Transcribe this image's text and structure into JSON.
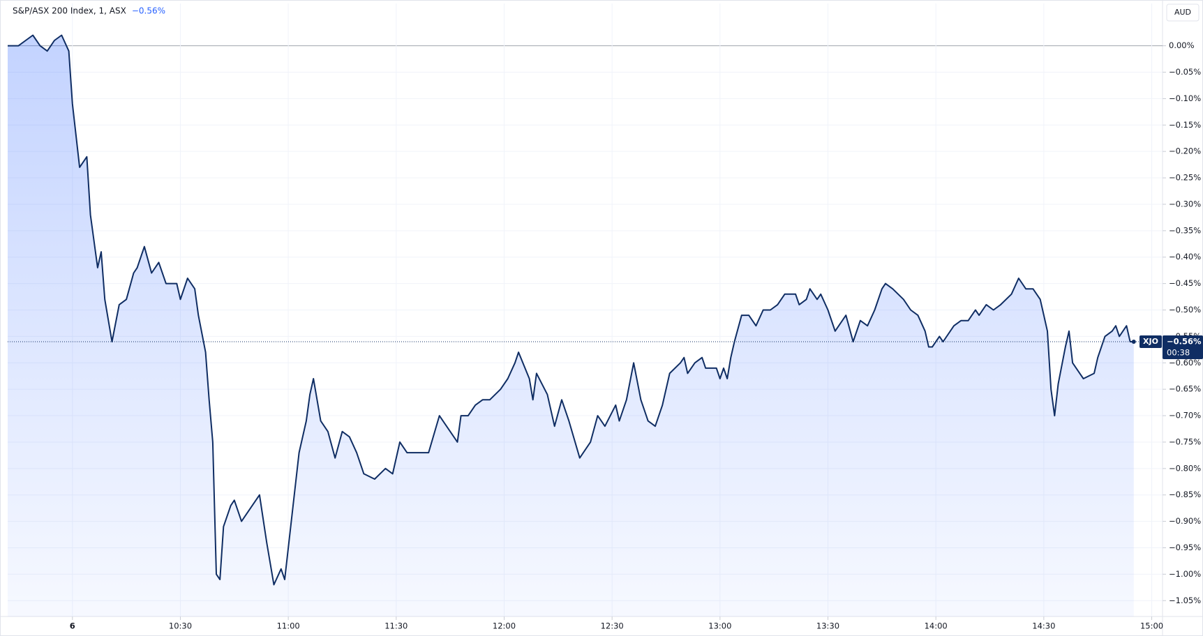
{
  "chart_data": {
    "type": "line",
    "title": "S&P/ASX 200 Index, 1, ASX",
    "change_label": "−0.56%",
    "symbol": "XJO",
    "countdown": "00:38",
    "currency": "AUD",
    "series": [
      {
        "name": "XJO",
        "color": "#0f2d63",
        "area_color": "#2962ff",
        "x": [
          582,
          585,
          587,
          589,
          591,
          593,
          595,
          597,
          599,
          600,
          602,
          604,
          605,
          607,
          608,
          609,
          611,
          613,
          615,
          617,
          618,
          620,
          622,
          624,
          626,
          629,
          630,
          632,
          634,
          635,
          637,
          638,
          639,
          640,
          641,
          642,
          644,
          645,
          647,
          649,
          652,
          654,
          656,
          658,
          659,
          661,
          663,
          665,
          666,
          667,
          669,
          671,
          673,
          675,
          677,
          679,
          681,
          684,
          687,
          689,
          691,
          693,
          695,
          697,
          699,
          702,
          704,
          707,
          708,
          710,
          712,
          714,
          716,
          719,
          721,
          723,
          724,
          727,
          728,
          729,
          732,
          734,
          736,
          738,
          741,
          744,
          746,
          747,
          748,
          751,
          752,
          754,
          756,
          758,
          760,
          762,
          764,
          766,
          769,
          770,
          771,
          773,
          775,
          776,
          779,
          780,
          781,
          782,
          783,
          784,
          786,
          788,
          790,
          792,
          794,
          796,
          798,
          801,
          802,
          804,
          805,
          807,
          808,
          810,
          812,
          815,
          817,
          819,
          821,
          823,
          825,
          826,
          828,
          831,
          833,
          835,
          837,
          838,
          839,
          841,
          842,
          845,
          847,
          849,
          851,
          852,
          854,
          856,
          858,
          861,
          863,
          865,
          867,
          869,
          870,
          871,
          872,
          873,
          874,
          876,
          877,
          878,
          880,
          881,
          884,
          885,
          887,
          889,
          890,
          891,
          893,
          894,
          895
        ],
        "values": [
          0.0,
          0.0,
          0.01,
          0.02,
          0.0,
          -0.01,
          0.01,
          0.02,
          -0.01,
          -0.11,
          -0.23,
          -0.21,
          -0.32,
          -0.42,
          -0.39,
          -0.48,
          -0.56,
          -0.49,
          -0.48,
          -0.43,
          -0.42,
          -0.38,
          -0.43,
          -0.41,
          -0.45,
          -0.45,
          -0.48,
          -0.44,
          -0.46,
          -0.51,
          -0.58,
          -0.67,
          -0.75,
          -1.0,
          -1.01,
          -0.91,
          -0.87,
          -0.86,
          -0.9,
          -0.88,
          -0.85,
          -0.94,
          -1.02,
          -0.99,
          -1.01,
          -0.89,
          -0.77,
          -0.71,
          -0.66,
          -0.63,
          -0.71,
          -0.73,
          -0.78,
          -0.73,
          -0.74,
          -0.77,
          -0.81,
          -0.82,
          -0.8,
          -0.81,
          -0.75,
          -0.77,
          -0.77,
          -0.77,
          -0.77,
          -0.7,
          -0.72,
          -0.75,
          -0.7,
          -0.7,
          -0.68,
          -0.67,
          -0.67,
          -0.65,
          -0.63,
          -0.6,
          -0.58,
          -0.63,
          -0.67,
          -0.62,
          -0.66,
          -0.72,
          -0.67,
          -0.71,
          -0.78,
          -0.75,
          -0.7,
          -0.71,
          -0.72,
          -0.68,
          -0.71,
          -0.67,
          -0.6,
          -0.67,
          -0.71,
          -0.72,
          -0.68,
          -0.62,
          -0.6,
          -0.59,
          -0.62,
          -0.6,
          -0.59,
          -0.61,
          -0.61,
          -0.63,
          -0.61,
          -0.63,
          -0.59,
          -0.56,
          -0.51,
          -0.51,
          -0.53,
          -0.5,
          -0.5,
          -0.49,
          -0.47,
          -0.47,
          -0.49,
          -0.48,
          -0.46,
          -0.48,
          -0.47,
          -0.5,
          -0.54,
          -0.51,
          -0.56,
          -0.52,
          -0.53,
          -0.5,
          -0.46,
          -0.45,
          -0.46,
          -0.48,
          -0.5,
          -0.51,
          -0.54,
          -0.57,
          -0.57,
          -0.55,
          -0.56,
          -0.53,
          -0.52,
          -0.52,
          -0.5,
          -0.51,
          -0.49,
          -0.5,
          -0.49,
          -0.47,
          -0.44,
          -0.46,
          -0.46,
          -0.48,
          -0.51,
          -0.54,
          -0.65,
          -0.7,
          -0.64,
          -0.57,
          -0.54,
          -0.6,
          -0.62,
          -0.63,
          -0.62,
          -0.59,
          -0.55,
          -0.54,
          -0.53,
          -0.55,
          -0.53,
          -0.56,
          -0.56
        ]
      }
    ],
    "xlim": [
      582,
      903
    ],
    "ylim": [
      -1.08,
      0.08
    ],
    "xticks": [
      {
        "value": 600,
        "label": "6"
      },
      {
        "value": 630,
        "label": "10:30"
      },
      {
        "value": 660,
        "label": "11:00"
      },
      {
        "value": 690,
        "label": "11:30"
      },
      {
        "value": 720,
        "label": "12:00"
      },
      {
        "value": 750,
        "label": "12:30"
      },
      {
        "value": 780,
        "label": "13:00"
      },
      {
        "value": 810,
        "label": "13:30"
      },
      {
        "value": 840,
        "label": "14:00"
      },
      {
        "value": 870,
        "label": "14:30"
      },
      {
        "value": 900,
        "label": "15:00"
      }
    ],
    "yticks": [
      {
        "value": 0,
        "label": "0.00%"
      },
      {
        "value": -0.05,
        "label": "−0.05%"
      },
      {
        "value": -0.1,
        "label": "−0.10%"
      },
      {
        "value": -0.15,
        "label": "−0.15%"
      },
      {
        "value": -0.2,
        "label": "−0.20%"
      },
      {
        "value": -0.25,
        "label": "−0.25%"
      },
      {
        "value": -0.3,
        "label": "−0.30%"
      },
      {
        "value": -0.35,
        "label": "−0.35%"
      },
      {
        "value": -0.4,
        "label": "−0.40%"
      },
      {
        "value": -0.45,
        "label": "−0.45%"
      },
      {
        "value": -0.5,
        "label": "−0.50%"
      },
      {
        "value": -0.55,
        "label": "−0.55%"
      },
      {
        "value": -0.6,
        "label": "−0.60%"
      },
      {
        "value": -0.65,
        "label": "−0.65%"
      },
      {
        "value": -0.7,
        "label": "−0.70%"
      },
      {
        "value": -0.75,
        "label": "−0.75%"
      },
      {
        "value": -0.8,
        "label": "−0.80%"
      },
      {
        "value": -0.85,
        "label": "−0.85%"
      },
      {
        "value": -0.9,
        "label": "−0.90%"
      },
      {
        "value": -0.95,
        "label": "−0.95%"
      },
      {
        "value": -1.0,
        "label": "−1.00%"
      },
      {
        "value": -1.05,
        "label": "−1.05%"
      }
    ],
    "grid": true
  }
}
